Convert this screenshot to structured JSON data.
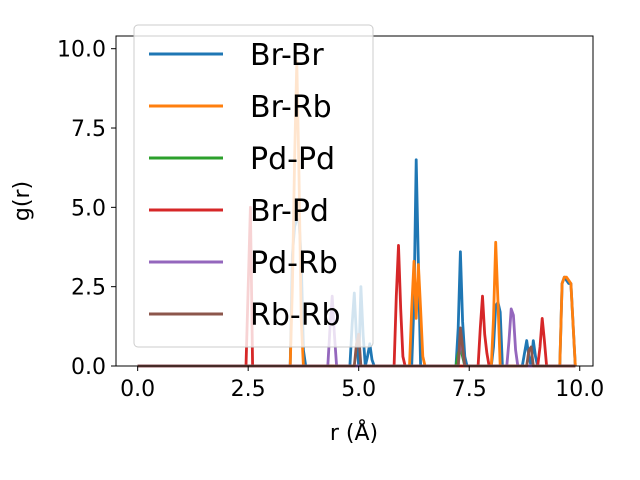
{
  "chart_data": {
    "type": "line",
    "xlabel": "r (Å)",
    "ylabel": "g(r)",
    "xlim": [
      -0.49,
      10.3
    ],
    "ylim": [
      0,
      10.4
    ],
    "xticks": [
      "0.0",
      "2.5",
      "5.0",
      "7.5",
      "10.0"
    ],
    "yticks": [
      "0.0",
      "2.5",
      "5.0",
      "7.5",
      "10.0"
    ],
    "legend_position": "upper-left",
    "grid": false,
    "series": [
      {
        "name": "Br-Br",
        "color": "#1f77b4",
        "x": [
          0,
          3.45,
          3.5,
          3.55,
          3.6,
          3.65,
          3.7,
          3.75,
          3.8,
          4.8,
          4.85,
          4.9,
          4.95,
          5.0,
          5.05,
          5.1,
          5.15,
          5.2,
          5.25,
          5.3,
          5.35,
          6.2,
          6.25,
          6.3,
          6.35,
          6.4,
          7.2,
          7.25,
          7.3,
          7.35,
          7.4,
          7.45,
          8.0,
          8.05,
          8.1,
          8.15,
          8.2,
          8.25,
          8.7,
          8.75,
          8.8,
          8.85,
          8.9,
          8.95,
          9.0,
          9.05,
          9.1,
          9.55,
          9.6,
          9.65,
          9.7,
          9.75,
          9.8,
          9.9
        ],
        "y": [
          0,
          0,
          3.5,
          4.4,
          4.6,
          4.6,
          3.4,
          0.5,
          0,
          0,
          1.3,
          2.3,
          0.9,
          0,
          2.5,
          1.0,
          0,
          0.3,
          0.7,
          0.2,
          0,
          0,
          2.0,
          6.5,
          3.2,
          0,
          0,
          1.2,
          3.6,
          1.4,
          0.3,
          0,
          0,
          0.6,
          1.9,
          2.0,
          1.7,
          0,
          0,
          0.4,
          0.8,
          0.3,
          0,
          0.8,
          0.3,
          0,
          0,
          0,
          2.6,
          2.8,
          2.7,
          2.6,
          2.6,
          0
        ]
      },
      {
        "name": "Br-Rb",
        "color": "#ff7f0e",
        "x": [
          0,
          3.45,
          3.5,
          3.55,
          3.6,
          3.65,
          3.7,
          3.75,
          6.15,
          6.2,
          6.25,
          6.3,
          6.35,
          6.4,
          6.45,
          6.5,
          8.0,
          8.05,
          8.1,
          8.15,
          8.2,
          9.55,
          9.6,
          9.65,
          9.7,
          9.75,
          9.8,
          9.9
        ],
        "y": [
          0,
          0,
          2.5,
          6.5,
          9.6,
          6.0,
          1.5,
          0,
          0,
          1.8,
          3.3,
          1.5,
          3.2,
          1.8,
          0.3,
          0,
          0,
          1.5,
          3.9,
          2.0,
          0,
          0,
          2.6,
          2.8,
          2.8,
          2.7,
          2.6,
          0
        ]
      },
      {
        "name": "Pd-Pd",
        "color": "#2ca02c",
        "x": [
          0,
          7.2,
          7.25,
          7.3,
          7.35,
          7.4,
          9.9
        ],
        "y": [
          0,
          0,
          0.4,
          0.6,
          0.3,
          0,
          0
        ]
      },
      {
        "name": "Br-Pd",
        "color": "#d62728",
        "x": [
          0,
          2.45,
          2.5,
          2.55,
          2.6,
          5.8,
          5.85,
          5.9,
          5.95,
          6.0,
          6.05,
          7.7,
          7.75,
          7.8,
          7.85,
          7.9,
          7.95,
          9.05,
          9.1,
          9.15,
          9.2,
          9.25,
          9.9
        ],
        "y": [
          0,
          0,
          2.5,
          5.0,
          0,
          0,
          2.2,
          3.8,
          1.8,
          0.3,
          0,
          0,
          1.2,
          2.2,
          1.0,
          0.4,
          0,
          0,
          0.6,
          1.5,
          0.8,
          0,
          0
        ]
      },
      {
        "name": "Pd-Rb",
        "color": "#9467bd",
        "x": [
          0,
          4.3,
          4.35,
          4.4,
          4.45,
          4.5,
          7.25,
          7.3,
          7.35,
          7.4,
          8.35,
          8.4,
          8.45,
          8.5,
          8.55,
          8.6,
          9.9
        ],
        "y": [
          0,
          0,
          1.2,
          2.2,
          1.0,
          0,
          0,
          0.8,
          0.5,
          0,
          0,
          0.8,
          1.8,
          1.6,
          0.5,
          0,
          0
        ]
      },
      {
        "name": "Rb-Rb",
        "color": "#8c564b",
        "x": [
          0,
          4.9,
          4.95,
          5.0,
          5.05,
          7.25,
          7.3,
          7.35,
          7.4,
          8.8,
          8.85,
          8.9,
          8.95,
          9.9
        ],
        "y": [
          0,
          0,
          0.7,
          1.0,
          0,
          0,
          1.2,
          0.6,
          0,
          0,
          0.5,
          0.6,
          0,
          0
        ]
      }
    ]
  }
}
